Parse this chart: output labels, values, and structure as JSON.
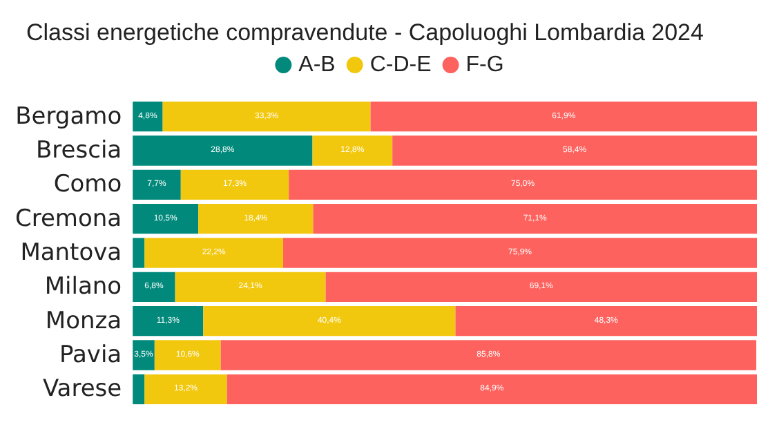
{
  "chart_data": {
    "type": "bar",
    "orientation": "horizontal",
    "stacked": true,
    "title": "Classi energetiche compravendute - Capoluoghi Lombardia 2024",
    "legend": "top",
    "tick_labels": "y",
    "categories": [
      "Bergamo",
      "Brescia",
      "Como",
      "Cremona",
      "Mantova",
      "Milano",
      "Monza",
      "Pavia",
      "Varese"
    ],
    "series": [
      {
        "name": "A-B",
        "color": "#01897b",
        "values": [
          4.8,
          28.8,
          7.7,
          10.5,
          1.9,
          6.8,
          11.3,
          3.5,
          1.9
        ],
        "value_labels": [
          "4,8%",
          "28,8%",
          "7,7%",
          "10,5%",
          null,
          "6,8%",
          "11,3%",
          "3,5%",
          null
        ]
      },
      {
        "name": "C-D-E",
        "color": "#f2c80f",
        "values": [
          33.3,
          12.8,
          17.3,
          18.4,
          22.2,
          24.1,
          40.4,
          10.6,
          13.2
        ],
        "value_labels": [
          "33,3%",
          "12,8%",
          "17,3%",
          "18,4%",
          "22,2%",
          "24,1%",
          "40,4%",
          "10,6%",
          "13,2%"
        ]
      },
      {
        "name": "F-G",
        "color": "#fd625e",
        "values": [
          61.9,
          58.4,
          75.0,
          71.1,
          75.9,
          69.1,
          48.3,
          85.8,
          84.9
        ],
        "value_labels": [
          "61,9%",
          "58,4%",
          "75,0%",
          "71,1%",
          "75,9%",
          "69,1%",
          "48,3%",
          "85,8%",
          "84,9%"
        ]
      }
    ]
  }
}
